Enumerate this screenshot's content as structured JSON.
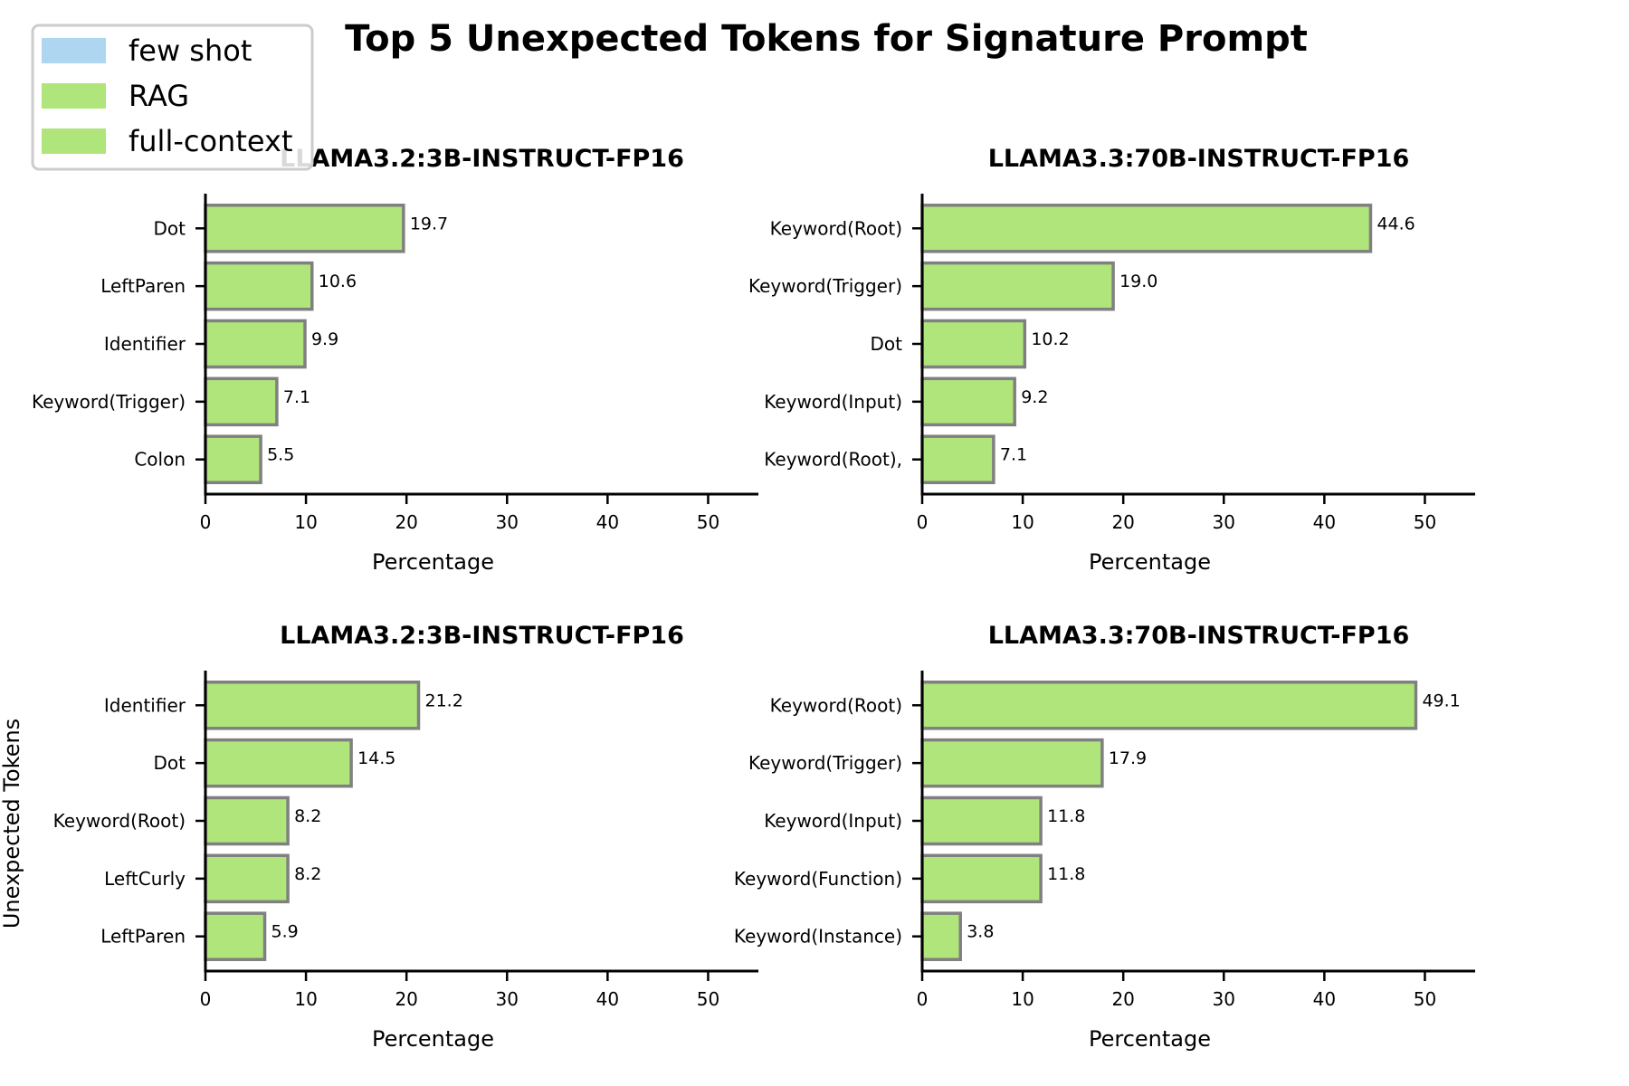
{
  "figure": {
    "suptitle": "Top 5 Unexpected Tokens for Signature Prompt",
    "ylabel": "Unexpected Tokens"
  },
  "legend": {
    "placement": "top-left",
    "entries": [
      {
        "label": "few shot",
        "color": "#aed6f1"
      },
      {
        "label": "RAG",
        "color": "#b0e57c"
      },
      {
        "label": "full-context",
        "color": "#b0e57c"
      }
    ]
  },
  "colors": {
    "bar_fill": "#b0e57c",
    "bar_edge": "#808080"
  },
  "chart_data": [
    {
      "type": "bar",
      "orientation": "horizontal",
      "title": "LLAMA3.2:3B-INSTRUCT-FP16",
      "xlabel": "Percentage",
      "xlim": [
        0,
        55
      ],
      "xticks": [
        0,
        10,
        20,
        30,
        40,
        50
      ],
      "categories": [
        "Dot",
        "LeftParen",
        "Identifier",
        "Keyword(Trigger)",
        "Colon"
      ],
      "values": [
        19.7,
        10.6,
        9.9,
        7.1,
        5.5
      ],
      "value_labels": [
        "19.7",
        "10.6",
        "9.9",
        "7.1",
        "5.5"
      ]
    },
    {
      "type": "bar",
      "orientation": "horizontal",
      "title": "LLAMA3.3:70B-INSTRUCT-FP16",
      "xlabel": "Percentage",
      "xlim": [
        0,
        55
      ],
      "xticks": [
        0,
        10,
        20,
        30,
        40,
        50
      ],
      "categories": [
        "Keyword(Root)",
        "Keyword(Trigger)",
        "Dot",
        "Keyword(Input)",
        "Keyword(Root),"
      ],
      "values": [
        44.6,
        19.0,
        10.2,
        9.2,
        7.1
      ],
      "value_labels": [
        "44.6",
        "19.0",
        "10.2",
        "9.2",
        "7.1"
      ]
    },
    {
      "type": "bar",
      "orientation": "horizontal",
      "title": "LLAMA3.2:3B-INSTRUCT-FP16",
      "xlabel": "Percentage",
      "xlim": [
        0,
        55
      ],
      "xticks": [
        0,
        10,
        20,
        30,
        40,
        50
      ],
      "categories": [
        "Identifier",
        "Dot",
        "Keyword(Root)",
        "LeftCurly",
        "LeftParen"
      ],
      "values": [
        21.2,
        14.5,
        8.2,
        8.2,
        5.9
      ],
      "value_labels": [
        "21.2",
        "14.5",
        "8.2",
        "8.2",
        "5.9"
      ]
    },
    {
      "type": "bar",
      "orientation": "horizontal",
      "title": "LLAMA3.3:70B-INSTRUCT-FP16",
      "xlabel": "Percentage",
      "xlim": [
        0,
        55
      ],
      "xticks": [
        0,
        10,
        20,
        30,
        40,
        50
      ],
      "categories": [
        "Keyword(Root)",
        "Keyword(Trigger)",
        "Keyword(Input)",
        "Keyword(Function)",
        "Keyword(Instance)"
      ],
      "values": [
        49.1,
        17.9,
        11.8,
        11.8,
        3.8
      ],
      "value_labels": [
        "49.1",
        "17.9",
        "11.8",
        "11.8",
        "3.8"
      ]
    }
  ]
}
